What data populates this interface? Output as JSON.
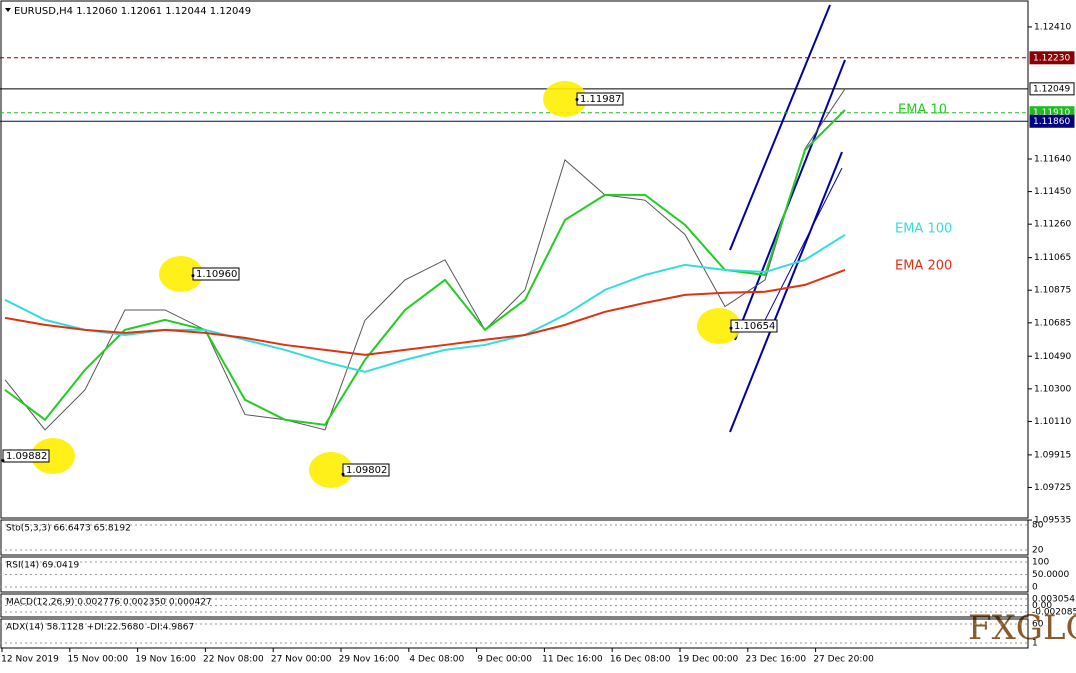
{
  "chart_data": {
    "type": "line",
    "title": "EURUSD,H4  1.12060 1.12061 1.12044 1.12049",
    "ylim": [
      1.09547,
      1.12567
    ],
    "yticks": [
      {
        "value": 1.1241,
        "label": "1.12410"
      },
      {
        "value": 1.1164,
        "label": "1.11640"
      },
      {
        "value": 1.1145,
        "label": "1.11450"
      },
      {
        "value": 1.1126,
        "label": "1.11260"
      },
      {
        "value": 1.11065,
        "label": "1.11065"
      },
      {
        "value": 1.10875,
        "label": "1.10875"
      },
      {
        "value": 1.10685,
        "label": "1.10685"
      },
      {
        "value": 1.1049,
        "label": "1.10490"
      },
      {
        "value": 1.103,
        "label": "1.10300"
      },
      {
        "value": 1.1011,
        "label": "1.10110"
      },
      {
        "value": 1.09915,
        "label": "1.09915"
      },
      {
        "value": 1.09725,
        "label": "1.09725"
      },
      {
        "value": 1.09535,
        "label": "1.09535"
      }
    ],
    "levels": [
      {
        "value": 1.1223,
        "label": "1.12230",
        "color": "#8b0000"
      },
      {
        "value": 1.12049,
        "label": "1.12049",
        "color": "#000000"
      },
      {
        "value": 1.1191,
        "label": "1.11910",
        "color": "#22bb22"
      },
      {
        "value": 1.1186,
        "label": "1.11860",
        "color": "#000080"
      }
    ],
    "series": [
      {
        "name": "EMA 10",
        "color": "#22cc22",
        "values": [
          1.10294,
          1.1012,
          1.10411,
          1.10644,
          1.10702,
          1.10644,
          1.10236,
          1.1012,
          1.1009,
          1.10469,
          1.1076,
          1.10935,
          1.10644,
          1.10819,
          1.11285,
          1.11431,
          1.11431,
          1.11256,
          1.10993,
          1.10964,
          1.11693,
          1.11926
        ]
      },
      {
        "name": "EMA 100",
        "color": "#33dddd",
        "values": [
          1.10819,
          1.10702,
          1.10644,
          1.10614,
          1.10644,
          1.10644,
          1.10586,
          1.10527,
          1.10457,
          1.10399,
          1.10469,
          1.10527,
          1.10556,
          1.10614,
          1.10731,
          1.10877,
          1.10964,
          1.11023,
          1.10993,
          1.10981,
          1.11052,
          1.11198
        ]
      },
      {
        "name": "EMA 200",
        "color": "#dd3311",
        "values": [
          1.10714,
          1.10673,
          1.10644,
          1.10626,
          1.10644,
          1.10626,
          1.10597,
          1.10556,
          1.10527,
          1.10498,
          1.10527,
          1.10556,
          1.10586,
          1.10614,
          1.10673,
          1.10749,
          1.10801,
          1.10848,
          1.1086,
          1.10866,
          1.10906,
          1.10993
        ]
      }
    ],
    "close": {
      "color": "#555555",
      "values": [
        1.10353,
        1.10061,
        1.10294,
        1.1076,
        1.1076,
        1.10644,
        1.1015,
        1.1012,
        1.10061,
        1.107,
        1.10935,
        1.11052,
        1.10644,
        1.10877,
        1.11635,
        1.1143,
        1.114,
        1.112,
        1.1078,
        1.10935,
        1.117,
        1.12049
      ]
    },
    "annotations": [
      {
        "value": 1.11987,
        "label": "1.11987"
      },
      {
        "value": 1.1096,
        "label": "1.10960"
      },
      {
        "value": 1.09882,
        "label": "1.09882"
      },
      {
        "value": 1.09802,
        "label": "1.09802"
      },
      {
        "value": 1.10654,
        "label": "1.10654"
      }
    ],
    "time_labels": [
      "12 Nov 2019",
      "15 Nov 00:00",
      "19 Nov 16:00",
      "22 Nov 08:00",
      "27 Nov 00:00",
      "29 Nov 16:00",
      "4 Dec 08:00",
      "9 Dec 00:00",
      "11 Dec 16:00",
      "16 Dec 08:00",
      "19 Dec 00:00",
      "23 Dec 16:00",
      "27 Dec 20:00"
    ],
    "indicators": [
      {
        "label": "Sto(5,3,3) 66.6473 65.8192",
        "scale": [
          "80",
          "20"
        ]
      },
      {
        "label": "RSI(14) 69.0419",
        "scale": [
          "100",
          "50.0000",
          "0"
        ]
      },
      {
        "label": "MACD(12,26,9) 0.002776 0.002350 0.000427",
        "scale": [
          "0.003054",
          "0.00",
          "-0.002085"
        ]
      },
      {
        "label": "ADX(14) 58.1128 +DI:22.5680 -DI:4.9867",
        "scale": [
          "60",
          "1"
        ]
      }
    ],
    "logo": "FXGLORY"
  }
}
